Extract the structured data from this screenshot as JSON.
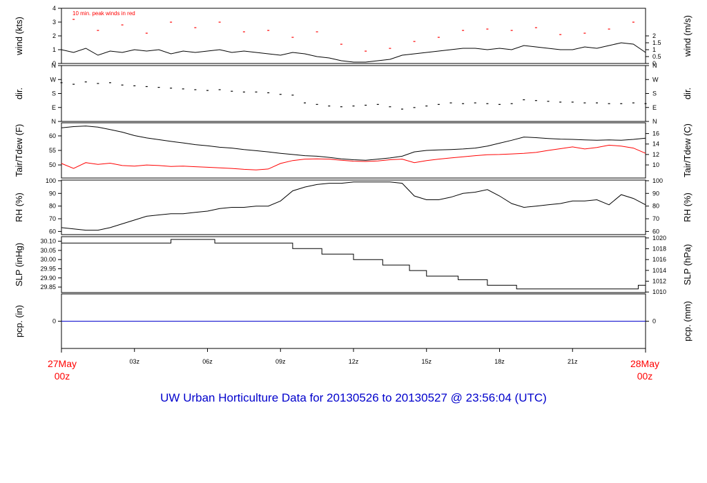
{
  "colors": {
    "primary": "#000000",
    "accent": "#ff0000",
    "title": "#0000cc",
    "zero_line": "#0000cc"
  },
  "title": "UW Urban Horticulture Data for 20130526  to  20130527 @ 23:56:04  (UTC)",
  "x_axis": {
    "start_label": [
      "27May",
      "00z"
    ],
    "end_label": [
      "28May",
      "00z"
    ],
    "ticks": [
      "03z",
      "06z",
      "09z",
      "12z",
      "15z",
      "18z",
      "21z"
    ],
    "tick_hours": [
      3,
      6,
      9,
      12,
      15,
      18,
      21
    ],
    "range_hours": [
      0,
      24
    ]
  },
  "chart_data": [
    {
      "type": "line",
      "panel": "wind",
      "left_label": "wind (kts)",
      "right_label": "wind (m/s)",
      "left_ticks": [
        "0",
        "1",
        "2",
        "3",
        "4"
      ],
      "left_tick_values": [
        0,
        1,
        2,
        3,
        4
      ],
      "right_ticks": [
        "0",
        "0.5",
        "1",
        "1.5",
        "2"
      ],
      "right_tick_values": [
        0,
        0.5,
        1,
        1.5,
        2
      ],
      "ylim": [
        0,
        4
      ],
      "annotation": "10 min. peak winds in red",
      "series": [
        {
          "key": "wind",
          "color": "#000000",
          "x": [
            0,
            0.5,
            1,
            1.5,
            2,
            2.5,
            3,
            3.5,
            4,
            4.5,
            5,
            5.5,
            6,
            6.5,
            7,
            7.5,
            8,
            8.5,
            9,
            9.5,
            10,
            10.5,
            11,
            11.5,
            12,
            12.5,
            13,
            13.5,
            14,
            14.5,
            15,
            15.5,
            16,
            16.5,
            17,
            17.5,
            18,
            18.5,
            19,
            19.5,
            20,
            20.5,
            21,
            21.5,
            22,
            22.5,
            23,
            23.5,
            24
          ],
          "y": [
            1.0,
            0.8,
            1.1,
            0.6,
            0.9,
            0.8,
            1.0,
            0.9,
            1.0,
            0.7,
            0.9,
            0.8,
            0.9,
            1.0,
            0.8,
            0.9,
            0.8,
            0.7,
            0.6,
            0.8,
            0.7,
            0.5,
            0.4,
            0.2,
            0.1,
            0.1,
            0.2,
            0.3,
            0.6,
            0.7,
            0.8,
            0.9,
            1.0,
            1.1,
            1.1,
            1.0,
            1.1,
            1.0,
            1.3,
            1.2,
            1.1,
            1.0,
            1.0,
            1.2,
            1.1,
            1.3,
            1.5,
            1.4,
            0.8
          ]
        },
        {
          "key": "gust",
          "color": "#ff0000",
          "style": "points",
          "x": [
            0.5,
            1.5,
            2.5,
            3.5,
            4.5,
            5.5,
            6.5,
            7.5,
            8.5,
            9.5,
            10.5,
            11.5,
            12.5,
            13.5,
            14.5,
            15.5,
            16.5,
            17.5,
            18.5,
            19.5,
            20.5,
            21.5,
            22.5,
            23.5
          ],
          "y": [
            3.2,
            2.4,
            2.8,
            2.2,
            3.0,
            2.6,
            3.0,
            2.3,
            2.4,
            1.9,
            2.3,
            1.4,
            0.9,
            1.1,
            1.6,
            1.9,
            2.4,
            2.5,
            2.4,
            2.6,
            2.1,
            2.2,
            2.5,
            3.0
          ]
        }
      ]
    },
    {
      "type": "scatter",
      "panel": "dir",
      "left_label": "dir.",
      "right_label": "dir.",
      "left_ticks": [
        "N",
        "E",
        "S",
        "W",
        "N"
      ],
      "left_tick_values": [
        0,
        90,
        180,
        270,
        360
      ],
      "right_ticks": [
        "N",
        "E",
        "S",
        "W",
        "N"
      ],
      "right_tick_values": [
        0,
        90,
        180,
        270,
        360
      ],
      "ylim": [
        0,
        360
      ],
      "series": [
        {
          "key": "dir",
          "color": "#000000",
          "x": [
            0,
            0.5,
            1,
            1.5,
            2,
            2.5,
            3,
            3.5,
            4,
            4.5,
            5,
            5.5,
            6,
            6.5,
            7,
            7.5,
            8,
            8.5,
            9,
            9.5,
            10,
            10.5,
            11,
            11.5,
            12,
            12.5,
            13,
            13.5,
            14,
            14.5,
            15,
            15.5,
            16,
            16.5,
            17,
            17.5,
            18,
            18.5,
            19,
            19.5,
            20,
            20.5,
            21,
            21.5,
            22,
            22.5,
            23,
            23.5,
            24
          ],
          "y": [
            250,
            240,
            255,
            245,
            250,
            235,
            230,
            225,
            220,
            215,
            210,
            205,
            200,
            205,
            195,
            190,
            190,
            185,
            175,
            170,
            120,
            110,
            100,
            95,
            100,
            105,
            110,
            95,
            80,
            90,
            100,
            110,
            120,
            115,
            120,
            115,
            110,
            115,
            140,
            135,
            130,
            125,
            125,
            120,
            120,
            115,
            115,
            120,
            115
          ]
        }
      ]
    },
    {
      "type": "line",
      "panel": "temp",
      "left_label": "Tair/Tdew (F)",
      "right_label": "Tair/Tdew (C)",
      "left_ticks": [
        "50",
        "55",
        "60"
      ],
      "left_tick_values": [
        50,
        55,
        60
      ],
      "right_ticks": [
        "10",
        "12",
        "14",
        "16"
      ],
      "right_tick_values": [
        50,
        53.6,
        57.2,
        60.8
      ],
      "ylim": [
        45.5,
        64.5
      ],
      "series": [
        {
          "key": "tair",
          "color": "#000000",
          "x": [
            0,
            0.5,
            1,
            1.5,
            2,
            2.5,
            3,
            3.5,
            4,
            4.5,
            5,
            5.5,
            6,
            6.5,
            7,
            7.5,
            8,
            8.5,
            9,
            9.5,
            10,
            10.5,
            11,
            11.5,
            12,
            12.5,
            13,
            13.5,
            14,
            14.5,
            15,
            15.5,
            16,
            16.5,
            17,
            17.5,
            18,
            18.5,
            19,
            19.5,
            20,
            20.5,
            21,
            21.5,
            22,
            22.5,
            23,
            23.5,
            24
          ],
          "y": [
            62.8,
            63.2,
            63.4,
            63.0,
            62.2,
            61.3,
            60.1,
            59.3,
            58.7,
            58.1,
            57.6,
            57.0,
            56.6,
            56.1,
            55.8,
            55.3,
            54.9,
            54.5,
            54.0,
            53.6,
            53.2,
            53.0,
            52.6,
            52.1,
            51.8,
            51.6,
            52.0,
            52.4,
            53.0,
            54.5,
            55.0,
            55.2,
            55.3,
            55.5,
            55.8,
            56.5,
            57.5,
            58.5,
            59.6,
            59.4,
            59.1,
            58.9,
            58.8,
            58.6,
            58.5,
            58.6,
            58.5,
            58.8,
            59.2
          ]
        },
        {
          "key": "tdew",
          "color": "#ff0000",
          "x": [
            0,
            0.5,
            1,
            1.5,
            2,
            2.5,
            3,
            3.5,
            4,
            4.5,
            5,
            5.5,
            6,
            6.5,
            7,
            7.5,
            8,
            8.5,
            9,
            9.5,
            10,
            10.5,
            11,
            11.5,
            12,
            12.5,
            13,
            13.5,
            14,
            14.5,
            15,
            15.5,
            16,
            16.5,
            17,
            17.5,
            18,
            18.5,
            19,
            19.5,
            20,
            20.5,
            21,
            21.5,
            22,
            22.5,
            23,
            23.5,
            24
          ],
          "y": [
            50.5,
            48.8,
            50.8,
            50.2,
            50.6,
            49.8,
            49.6,
            50.0,
            49.8,
            49.5,
            49.6,
            49.4,
            49.2,
            49.0,
            48.8,
            48.5,
            48.3,
            48.6,
            50.5,
            51.5,
            52.0,
            52.1,
            52.0,
            51.6,
            51.3,
            51.2,
            51.4,
            51.8,
            52.0,
            50.8,
            51.5,
            52.0,
            52.4,
            52.8,
            53.2,
            53.5,
            53.6,
            53.8,
            54.0,
            54.3,
            55.0,
            55.6,
            56.2,
            55.5,
            56.0,
            56.8,
            56.5,
            55.8,
            54.0
          ]
        }
      ]
    },
    {
      "type": "line",
      "panel": "rh",
      "left_label": "RH (%)",
      "right_label": "RH (%)",
      "left_ticks": [
        "60",
        "70",
        "80",
        "90",
        "100"
      ],
      "left_tick_values": [
        60,
        70,
        80,
        90,
        100
      ],
      "right_ticks": [
        "60",
        "70",
        "80",
        "90",
        "100"
      ],
      "right_tick_values": [
        60,
        70,
        80,
        90,
        100
      ],
      "ylim": [
        57.5,
        100.5
      ],
      "series": [
        {
          "key": "rh",
          "color": "#000000",
          "x": [
            0,
            0.5,
            1,
            1.5,
            2,
            2.5,
            3,
            3.5,
            4,
            4.5,
            5,
            5.5,
            6,
            6.5,
            7,
            7.5,
            8,
            8.5,
            9,
            9.5,
            10,
            10.5,
            11,
            11.5,
            12,
            12.5,
            13,
            13.5,
            14,
            14.5,
            15,
            15.5,
            16,
            16.5,
            17,
            17.5,
            18,
            18.5,
            19,
            19.5,
            20,
            20.5,
            21,
            21.5,
            22,
            22.5,
            23,
            23.5,
            24
          ],
          "y": [
            63,
            62,
            61,
            61,
            63,
            66,
            69,
            72,
            73,
            74,
            74,
            75,
            76,
            78,
            79,
            79,
            80,
            80,
            84,
            92,
            95,
            97,
            98,
            98,
            99,
            99,
            99,
            99,
            98,
            88,
            85,
            85,
            87,
            90,
            91,
            93,
            88,
            82,
            79,
            80,
            81,
            82,
            84,
            84,
            85,
            81,
            89,
            86,
            81
          ]
        }
      ]
    },
    {
      "type": "line",
      "panel": "slp",
      "left_label": "SLP (inHg)",
      "right_label": "SLP (hPa)",
      "left_ticks": [
        "29.85",
        "29.90",
        "29.95",
        "30.00",
        "30.05",
        "30.10"
      ],
      "left_tick_values": [
        29.85,
        29.9,
        29.95,
        30.0,
        30.05,
        30.1
      ],
      "right_ticks": [
        "1010",
        "1012",
        "1014",
        "1016",
        "1018",
        "1020"
      ],
      "right_tick_values": [
        29.823,
        29.882,
        29.941,
        30.0,
        30.059,
        30.118
      ],
      "ylim": [
        29.82,
        30.125
      ],
      "series": [
        {
          "key": "slp",
          "color": "#000000",
          "style": "step",
          "x": [
            0,
            4.5,
            6.3,
            9.5,
            10.7,
            12.0,
            13.2,
            14.3,
            15.0,
            16.3,
            17.5,
            18.7,
            21.8,
            23.7,
            24
          ],
          "y": [
            30.09,
            30.11,
            30.09,
            30.06,
            30.03,
            30.0,
            29.97,
            29.94,
            29.91,
            29.89,
            29.86,
            29.84,
            29.84,
            29.86,
            29.83
          ]
        }
      ]
    },
    {
      "type": "line",
      "panel": "pcp",
      "left_label": "pcp. (in)",
      "right_label": "pcp. (mm)",
      "left_ticks": [
        "0"
      ],
      "left_tick_values": [
        0
      ],
      "right_ticks": [
        "0"
      ],
      "right_tick_values": [
        0
      ],
      "ylim": [
        -1,
        1
      ],
      "series": [
        {
          "key": "pcp",
          "color": "#0000cc",
          "x": [
            0,
            24
          ],
          "y": [
            0,
            0
          ]
        }
      ]
    }
  ]
}
